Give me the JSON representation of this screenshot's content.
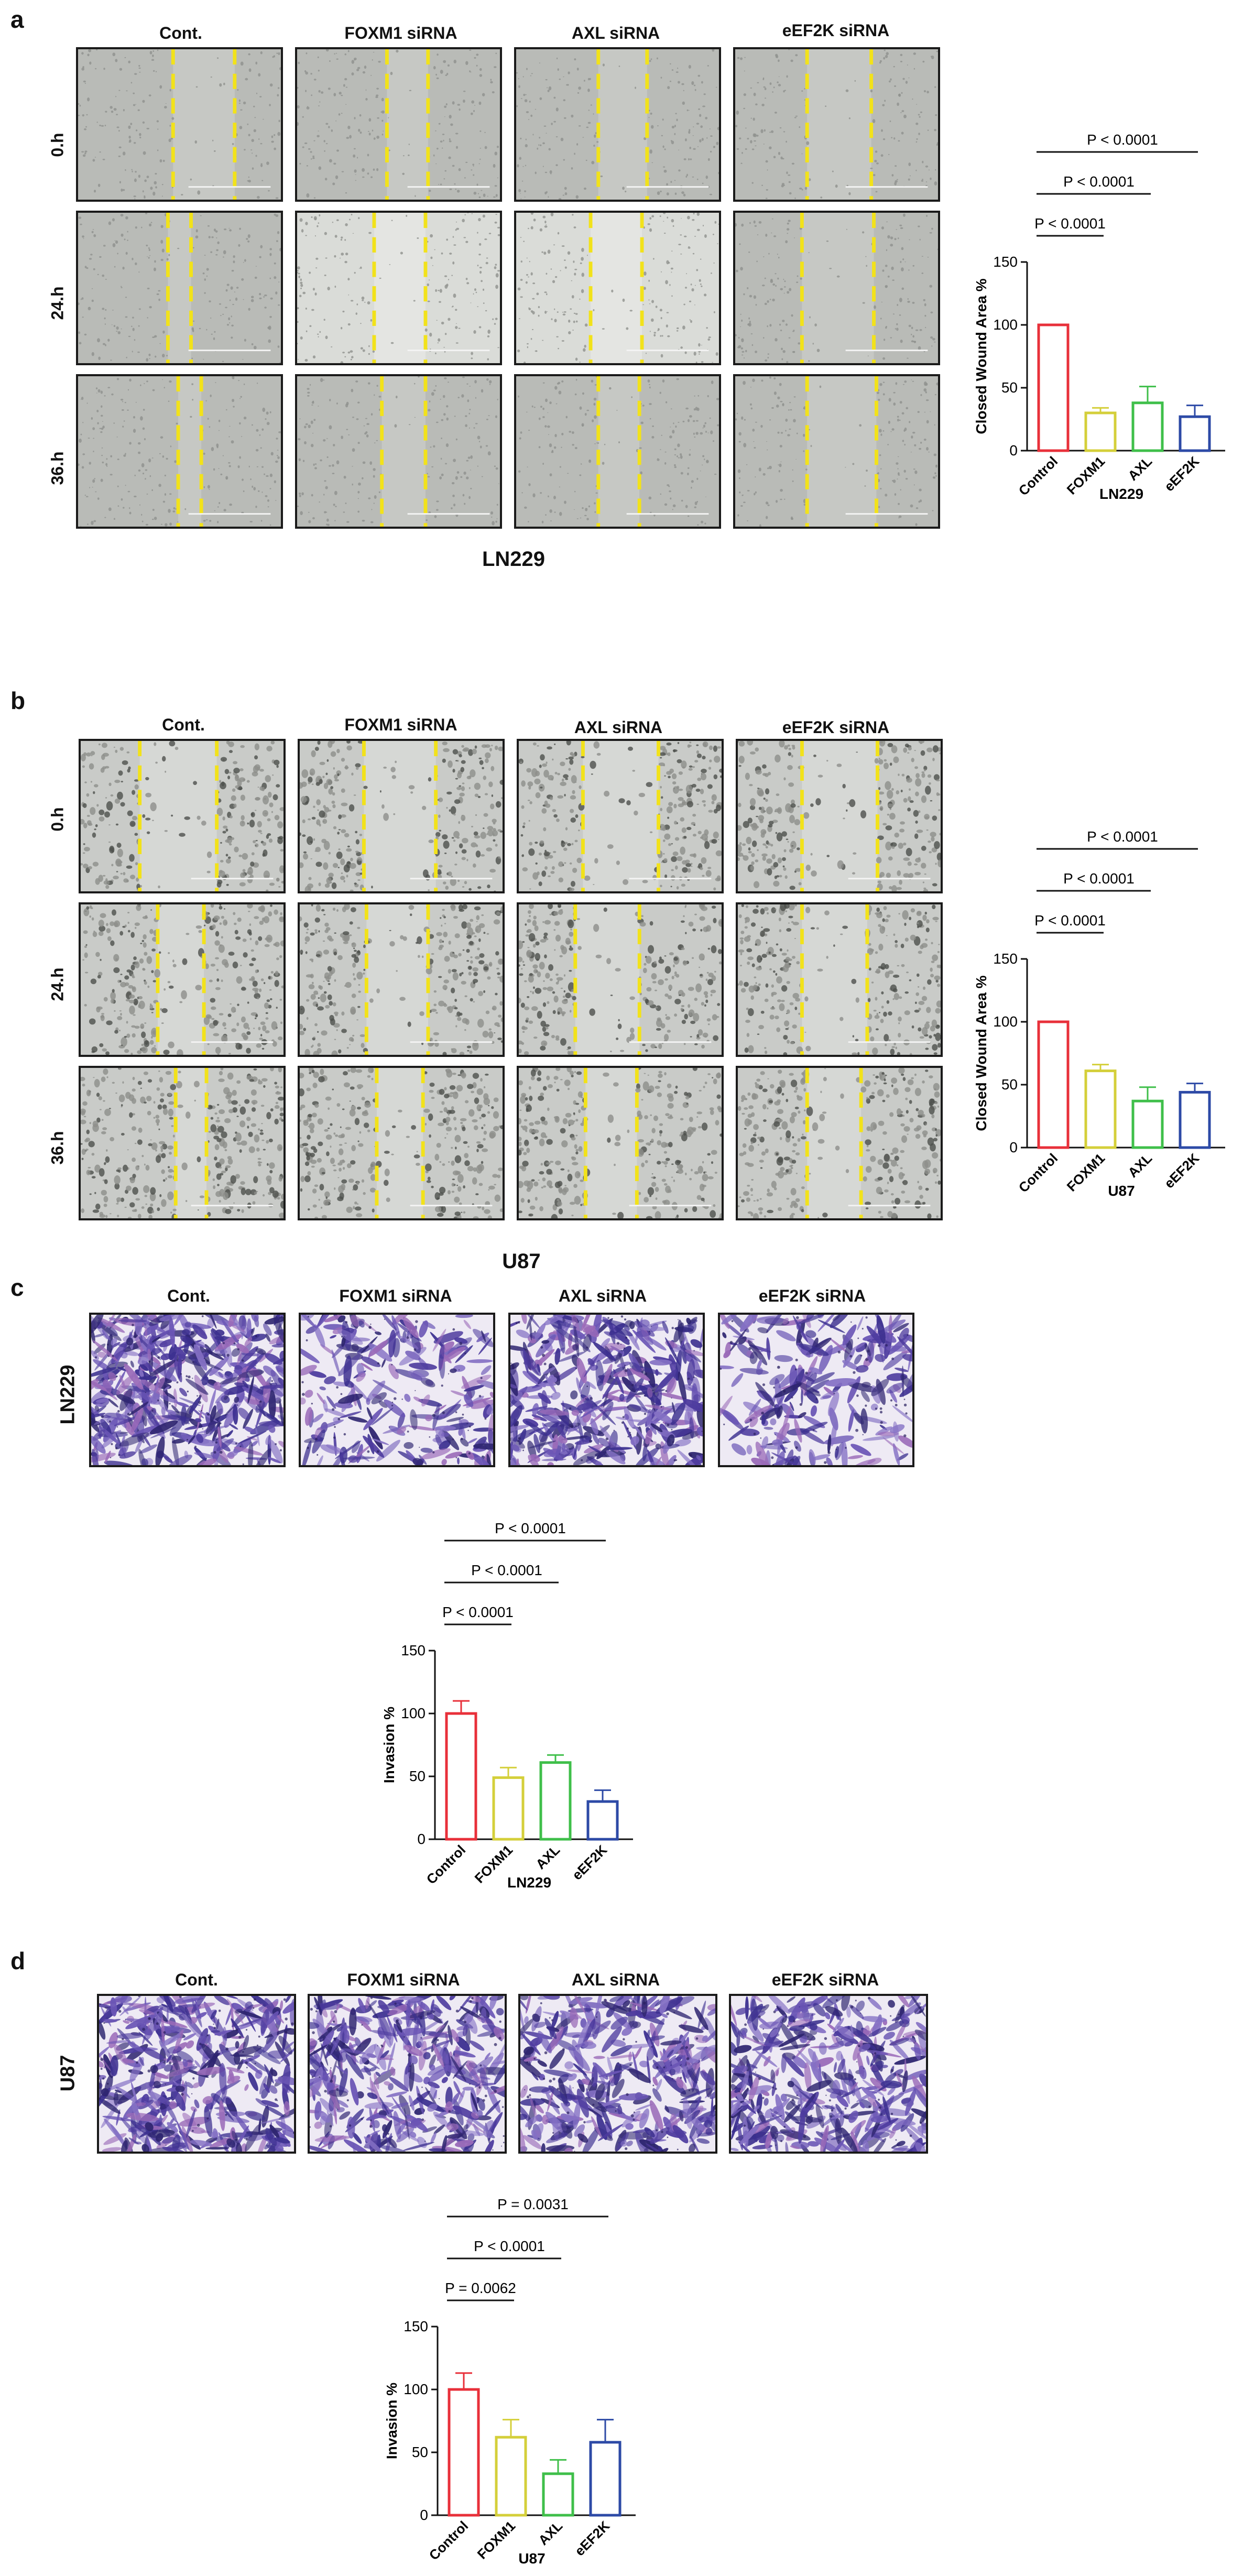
{
  "panels": [
    {
      "letter": "a",
      "kind": "wound",
      "col_labels": [
        "Cont.",
        "FOXM1 siRNA",
        "AXL siRNA",
        "eEF2K siRNA"
      ],
      "row_labels": [
        "0.h",
        "24.h",
        "36.h"
      ],
      "caption": "LN229",
      "theme": "gray"
    },
    {
      "letter": "b",
      "kind": "wound",
      "col_labels": [
        "Cont.",
        "FOXM1 siRNA",
        "AXL siRNA",
        "eEF2K siRNA"
      ],
      "row_labels": [
        "0.h",
        "24.h",
        "36.h"
      ],
      "caption": "U87",
      "theme": "speckle"
    },
    {
      "letter": "c",
      "kind": "invasion",
      "col_labels": [
        "Cont.",
        "FOXM1 siRNA",
        "AXL siRNA",
        "eEF2K siRNA"
      ],
      "row_label": "LN229",
      "theme": "purple"
    },
    {
      "letter": "d",
      "kind": "invasion",
      "col_labels": [
        "Cont.",
        "FOXM1 siRNA",
        "AXL siRNA",
        "eEF2K siRNA"
      ],
      "row_label": "U87",
      "theme": "purple"
    }
  ],
  "chart_data": [
    {
      "type": "bar",
      "panel": "a",
      "categories": [
        "Control",
        "FOXM1",
        "AXL",
        "eEF2K"
      ],
      "values": [
        100,
        30,
        38,
        27
      ],
      "errors": [
        0,
        4,
        13,
        9
      ],
      "ylabel": "Closed Wound Area %",
      "xlabel": "LN229",
      "ylim": [
        0,
        150
      ],
      "yticks": [
        0,
        50,
        100,
        150
      ],
      "colors": [
        "#e8303a",
        "#d4cf3a",
        "#3fbf4a",
        "#2d4aa6"
      ],
      "brackets": [
        {
          "label": "P < 0.0001",
          "to": 1
        },
        {
          "label": "P < 0.0001",
          "to": 2
        },
        {
          "label": "P < 0.0001",
          "to": 3
        }
      ]
    },
    {
      "type": "bar",
      "panel": "b",
      "categories": [
        "Control",
        "FOXM1",
        "AXL",
        "eEF2K"
      ],
      "values": [
        100,
        61,
        37,
        44
      ],
      "errors": [
        0,
        5,
        11,
        7
      ],
      "ylabel": "Closed Wound Area %",
      "xlabel": "U87",
      "ylim": [
        0,
        150
      ],
      "yticks": [
        0,
        50,
        100,
        150
      ],
      "colors": [
        "#e8303a",
        "#d4cf3a",
        "#3fbf4a",
        "#2d4aa6"
      ],
      "brackets": [
        {
          "label": "P < 0.0001",
          "to": 1
        },
        {
          "label": "P < 0.0001",
          "to": 2
        },
        {
          "label": "P < 0.0001",
          "to": 3
        }
      ]
    },
    {
      "type": "bar",
      "panel": "c",
      "categories": [
        "Control",
        "FOXM1",
        "AXL",
        "eEF2K"
      ],
      "values": [
        100,
        49,
        61,
        30
      ],
      "errors": [
        10,
        8,
        6,
        9
      ],
      "ylabel": "Invasion %",
      "xlabel": "LN229",
      "ylim": [
        0,
        150
      ],
      "yticks": [
        0,
        50,
        100,
        150
      ],
      "colors": [
        "#e8303a",
        "#d4cf3a",
        "#3fbf4a",
        "#2d4aa6"
      ],
      "brackets": [
        {
          "label": "P < 0.0001",
          "to": 1
        },
        {
          "label": "P < 0.0001",
          "to": 2
        },
        {
          "label": "P < 0.0001",
          "to": 3
        }
      ]
    },
    {
      "type": "bar",
      "panel": "d",
      "categories": [
        "Control",
        "FOXM1",
        "AXL",
        "eEF2K"
      ],
      "values": [
        100,
        62,
        33,
        58
      ],
      "errors": [
        13,
        14,
        11,
        18
      ],
      "ylabel": "Invasion %",
      "xlabel": "U87",
      "ylim": [
        0,
        150
      ],
      "yticks": [
        0,
        50,
        100,
        150
      ],
      "colors": [
        "#e8303a",
        "#d4cf3a",
        "#3fbf4a",
        "#2d4aa6"
      ],
      "brackets": [
        {
          "label": "P = 0.0062",
          "to": 1
        },
        {
          "label": "P < 0.0001",
          "to": 2
        },
        {
          "label": "P = 0.0031",
          "to": 3
        }
      ]
    }
  ]
}
